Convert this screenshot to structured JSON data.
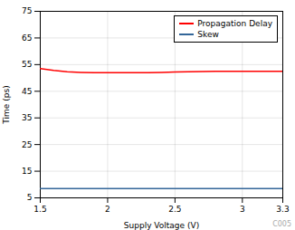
{
  "chart_data": {
    "type": "line",
    "title": "",
    "xlabel": "Supply Voltage (V)",
    "ylabel": "Time (ps)",
    "x": [
      1.5,
      1.6,
      1.7,
      1.8,
      1.9,
      2.0,
      2.1,
      2.2,
      2.3,
      2.4,
      2.5,
      2.6,
      2.7,
      2.8,
      2.9,
      3.0,
      3.1,
      3.2,
      3.3
    ],
    "series": [
      {
        "name": "Propagation Delay",
        "color": "#FF0000",
        "values": [
          53.5,
          52.8,
          52.3,
          52.1,
          52.0,
          52.0,
          52.0,
          52.0,
          52.0,
          52.1,
          52.2,
          52.3,
          52.4,
          52.5,
          52.5,
          52.5,
          52.5,
          52.5,
          52.5
        ]
      },
      {
        "name": "Skew",
        "color": "#336699",
        "values": [
          8.5,
          8.5,
          8.5,
          8.5,
          8.5,
          8.5,
          8.5,
          8.5,
          8.5,
          8.5,
          8.5,
          8.5,
          8.5,
          8.5,
          8.5,
          8.5,
          8.5,
          8.5,
          8.5
        ]
      }
    ],
    "xlim": [
      1.5,
      3.3
    ],
    "ylim": [
      5,
      75
    ],
    "xticks": [
      1.5,
      2,
      2.5,
      3,
      3.3
    ],
    "yticks": [
      5,
      15,
      25,
      35,
      45,
      55,
      65,
      75
    ],
    "grid": true,
    "legend": "upper right",
    "annotations": [
      "C005"
    ]
  }
}
